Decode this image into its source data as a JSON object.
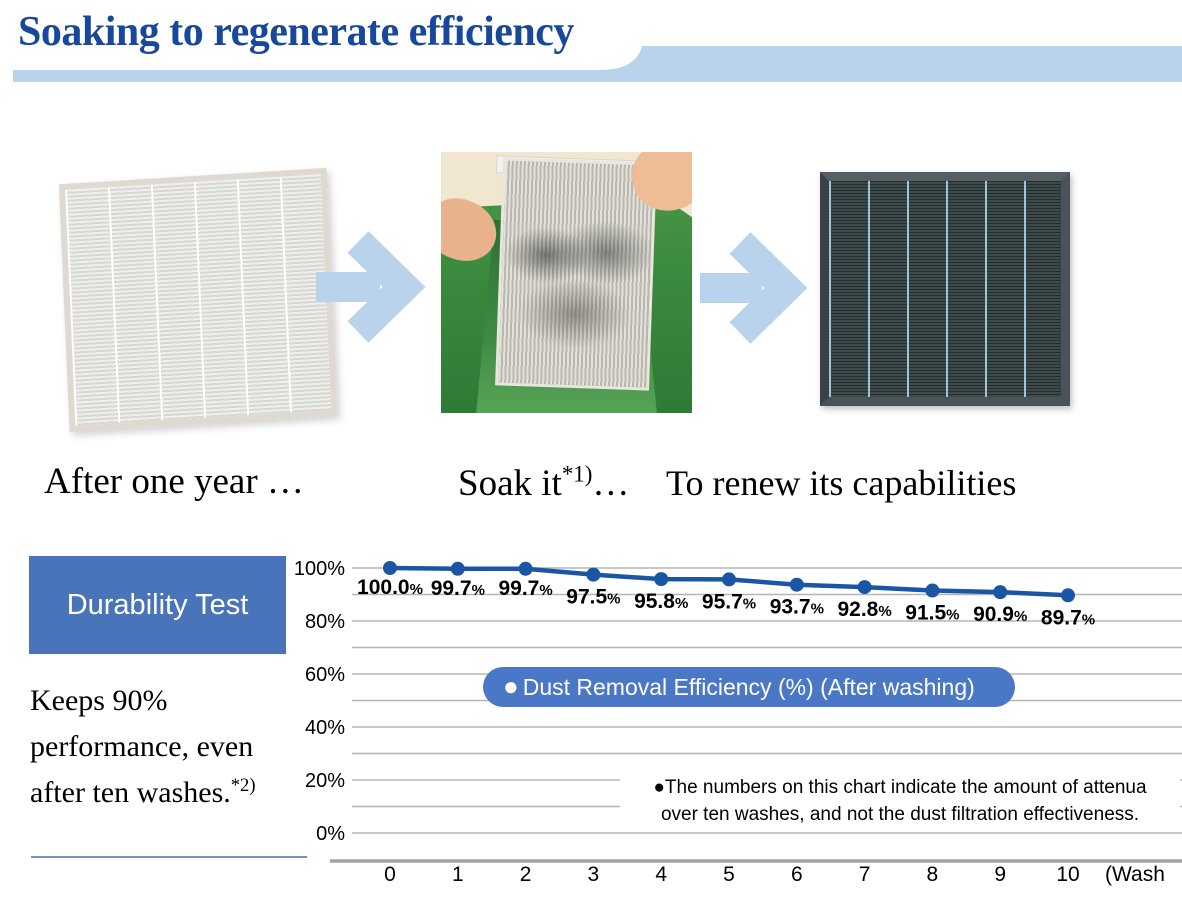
{
  "colors": {
    "title_navy": "#17489c",
    "band_blue": "#b9d3ec",
    "badge_blue": "#4a74ba",
    "legend_blue": "#4a78c6",
    "line_blue": "#1b55a5"
  },
  "header": {
    "title": "Soaking to regenerate efficiency"
  },
  "process": {
    "captions": {
      "step1": "After one year …",
      "step2_base": "Soak it",
      "step2_sup": "*1)",
      "step2_end": "…",
      "step3": "To renew its capabilities"
    },
    "images": {
      "step1": "dirty-white-filter",
      "step2": "filter-soaking-in-green-basin",
      "step3": "renewed-dark-filter"
    }
  },
  "durability": {
    "badge_label": "Durability Test",
    "note_main": "Keeps 90% performance, even after ten washes.",
    "note_sup": "*2)"
  },
  "chart_data": {
    "type": "line",
    "x": [
      0,
      1,
      2,
      3,
      4,
      5,
      6,
      7,
      8,
      9,
      10
    ],
    "values": [
      100.0,
      99.7,
      99.7,
      97.5,
      95.8,
      95.7,
      93.7,
      92.8,
      91.5,
      90.9,
      89.7
    ],
    "value_labels": [
      "100.0",
      "99.7",
      "99.7",
      "97.5",
      "95.8",
      "95.7",
      "93.7",
      "92.8",
      "91.5",
      "90.9",
      "89.7"
    ],
    "value_suffix": "%",
    "yticks": [
      "100%",
      "80%",
      "60%",
      "40%",
      "20%",
      "0%"
    ],
    "xticks": [
      "0",
      "1",
      "2",
      "3",
      "4",
      "5",
      "6",
      "7",
      "8",
      "9",
      "10"
    ],
    "xlabel_unit": "(Wash",
    "ylim": [
      0,
      100
    ],
    "grid_interval": 10,
    "grid": true,
    "legend": "Dust Removal Efficiency (%) (After washing)",
    "legend_bullet": "●",
    "legend_position": "center",
    "note_line1": "●The numbers on this chart indicate the amount of attenua",
    "note_line2": "over ten washes, and not the dust filtration effectiveness."
  }
}
